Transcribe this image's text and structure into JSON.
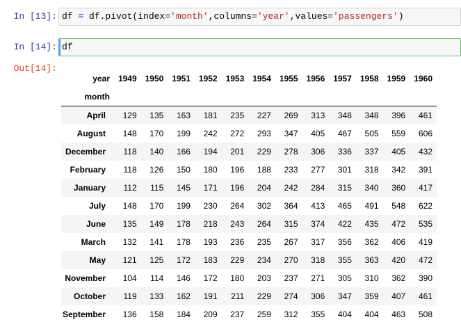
{
  "cells": [
    {
      "prompt": "In  [13]:",
      "code_tokens": [
        {
          "t": "df ",
          "k": "var"
        },
        {
          "t": "=",
          "k": "op"
        },
        {
          "t": " df.pivot(index=",
          "k": "var"
        },
        {
          "t": "'month'",
          "k": "str"
        },
        {
          "t": ",columns=",
          "k": "var"
        },
        {
          "t": "'year'",
          "k": "str"
        },
        {
          "t": ",values=",
          "k": "var"
        },
        {
          "t": "'passengers'",
          "k": "str"
        },
        {
          "t": ")",
          "k": "var"
        }
      ]
    },
    {
      "prompt": "In  [14]:",
      "code_tokens": [
        {
          "t": "df",
          "k": "var"
        }
      ]
    }
  ],
  "output": {
    "prompt": "Out[14]:",
    "columns_name": "year",
    "index_name": "month",
    "columns": [
      "1949",
      "1950",
      "1951",
      "1952",
      "1953",
      "1954",
      "1955",
      "1956",
      "1957",
      "1958",
      "1959",
      "1960"
    ],
    "rows": [
      {
        "label": "April",
        "values": [
          129,
          135,
          163,
          181,
          235,
          227,
          269,
          313,
          348,
          348,
          396,
          461
        ]
      },
      {
        "label": "August",
        "values": [
          148,
          170,
          199,
          242,
          272,
          293,
          347,
          405,
          467,
          505,
          559,
          606
        ]
      },
      {
        "label": "December",
        "values": [
          118,
          140,
          166,
          194,
          201,
          229,
          278,
          306,
          336,
          337,
          405,
          432
        ]
      },
      {
        "label": "February",
        "values": [
          118,
          126,
          150,
          180,
          196,
          188,
          233,
          277,
          301,
          318,
          342,
          391
        ]
      },
      {
        "label": "January",
        "values": [
          112,
          115,
          145,
          171,
          196,
          204,
          242,
          284,
          315,
          340,
          360,
          417
        ]
      },
      {
        "label": "July",
        "values": [
          148,
          170,
          199,
          230,
          264,
          302,
          364,
          413,
          465,
          491,
          548,
          622
        ]
      },
      {
        "label": "June",
        "values": [
          135,
          149,
          178,
          218,
          243,
          264,
          315,
          374,
          422,
          435,
          472,
          535
        ]
      },
      {
        "label": "March",
        "values": [
          132,
          141,
          178,
          193,
          236,
          235,
          267,
          317,
          356,
          362,
          406,
          419
        ]
      },
      {
        "label": "May",
        "values": [
          121,
          125,
          172,
          183,
          229,
          234,
          270,
          318,
          355,
          363,
          420,
          472
        ]
      },
      {
        "label": "November",
        "values": [
          104,
          114,
          146,
          172,
          180,
          203,
          237,
          271,
          305,
          310,
          362,
          390
        ]
      },
      {
        "label": "October",
        "values": [
          119,
          133,
          162,
          191,
          211,
          229,
          274,
          306,
          347,
          359,
          407,
          461
        ]
      },
      {
        "label": "September",
        "values": [
          136,
          158,
          184,
          209,
          237,
          259,
          312,
          355,
          404,
          404,
          463,
          508
        ]
      }
    ]
  }
}
